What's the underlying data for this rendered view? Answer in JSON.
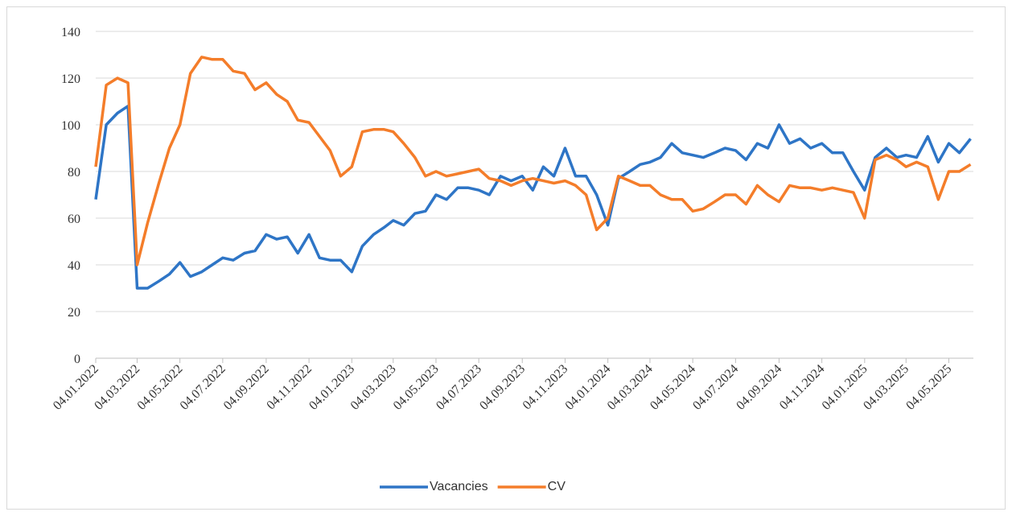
{
  "chart_data": {
    "type": "line",
    "x": [
      "04.01.2022",
      "19.01.2022",
      "04.02.2022",
      "19.02.2022",
      "04.03.2022",
      "19.03.2022",
      "04.04.2022",
      "19.04.2022",
      "04.05.2022",
      "19.05.2022",
      "04.06.2022",
      "19.06.2022",
      "04.07.2022",
      "19.07.2022",
      "04.08.2022",
      "19.08.2022",
      "04.09.2022",
      "19.09.2022",
      "04.10.2022",
      "19.10.2022",
      "04.11.2022",
      "19.11.2022",
      "04.12.2022",
      "19.12.2022",
      "04.01.2023",
      "19.01.2023",
      "04.02.2023",
      "19.02.2023",
      "04.03.2023",
      "19.03.2023",
      "04.04.2023",
      "19.04.2023",
      "04.05.2023",
      "19.05.2023",
      "04.06.2023",
      "19.06.2023",
      "04.07.2023",
      "19.07.2023",
      "04.08.2023",
      "19.08.2023",
      "04.09.2023",
      "19.09.2023",
      "04.10.2023",
      "19.10.2023",
      "04.11.2023",
      "19.11.2023",
      "04.12.2023",
      "19.12.2023",
      "04.01.2024",
      "19.01.2024",
      "04.02.2024",
      "19.02.2024",
      "04.03.2024",
      "19.03.2024",
      "04.04.2024",
      "19.04.2024",
      "04.05.2024",
      "19.05.2024",
      "04.06.2024",
      "19.06.2024",
      "04.07.2024",
      "19.07.2024",
      "04.08.2024",
      "19.08.2024",
      "04.09.2024",
      "19.09.2024",
      "04.10.2024",
      "19.10.2024",
      "04.11.2024",
      "19.11.2024",
      "04.12.2024",
      "19.12.2024",
      "04.01.2025",
      "19.01.2025",
      "04.02.2025",
      "19.02.2025",
      "04.03.2025",
      "19.03.2025",
      "04.04.2025",
      "19.04.2025",
      "04.05.2025",
      "19.05.2025",
      "04.06.2025"
    ],
    "series": [
      {
        "name": "Vacancies",
        "color": "#2e75c6",
        "values": [
          68,
          100,
          105,
          108,
          30,
          30,
          33,
          36,
          41,
          35,
          37,
          40,
          43,
          42,
          45,
          46,
          53,
          51,
          52,
          45,
          53,
          43,
          42,
          42,
          37,
          48,
          53,
          56,
          59,
          57,
          62,
          63,
          70,
          68,
          73,
          73,
          72,
          70,
          78,
          76,
          78,
          72,
          82,
          78,
          90,
          78,
          78,
          70,
          57,
          77,
          80,
          83,
          84,
          86,
          92,
          88,
          87,
          86,
          88,
          90,
          89,
          85,
          92,
          90,
          100,
          92,
          94,
          90,
          92,
          88,
          88,
          80,
          72,
          86,
          90,
          86,
          87,
          86,
          95,
          84,
          92,
          88,
          94
        ]
      },
      {
        "name": "CV",
        "color": "#f47d2a",
        "values": [
          82,
          117,
          120,
          118,
          40,
          58,
          75,
          90,
          100,
          122,
          129,
          128,
          128,
          123,
          122,
          115,
          118,
          113,
          110,
          102,
          101,
          95,
          89,
          78,
          82,
          97,
          98,
          98,
          97,
          92,
          86,
          78,
          80,
          78,
          79,
          80,
          81,
          77,
          76,
          74,
          76,
          77,
          76,
          75,
          76,
          74,
          70,
          55,
          60,
          78,
          76,
          74,
          74,
          70,
          68,
          68,
          63,
          64,
          67,
          70,
          70,
          66,
          74,
          70,
          67,
          74,
          73,
          73,
          72,
          73,
          72,
          71,
          60,
          85,
          87,
          85,
          82,
          84,
          82,
          68,
          80,
          80,
          83
        ]
      }
    ],
    "xlim": [
      "04.01.2022",
      "08.06.2025"
    ],
    "xticks": [
      "04.01.2022",
      "04.03.2022",
      "04.05.2022",
      "04.07.2022",
      "04.09.2022",
      "04.11.2022",
      "04.01.2023",
      "04.03.2023",
      "04.05.2023",
      "04.07.2023",
      "04.09.2023",
      "04.11.2023",
      "04.01.2024",
      "04.03.2024",
      "04.05.2024",
      "04.07.2024",
      "04.09.2024",
      "04.11.2024",
      "04.01.2025",
      "04.03.2025",
      "04.05.2025"
    ],
    "ylim": [
      0,
      140
    ],
    "yticks": [
      0,
      20,
      40,
      60,
      80,
      100,
      120,
      140
    ],
    "grid": true,
    "legend": "bottom"
  }
}
